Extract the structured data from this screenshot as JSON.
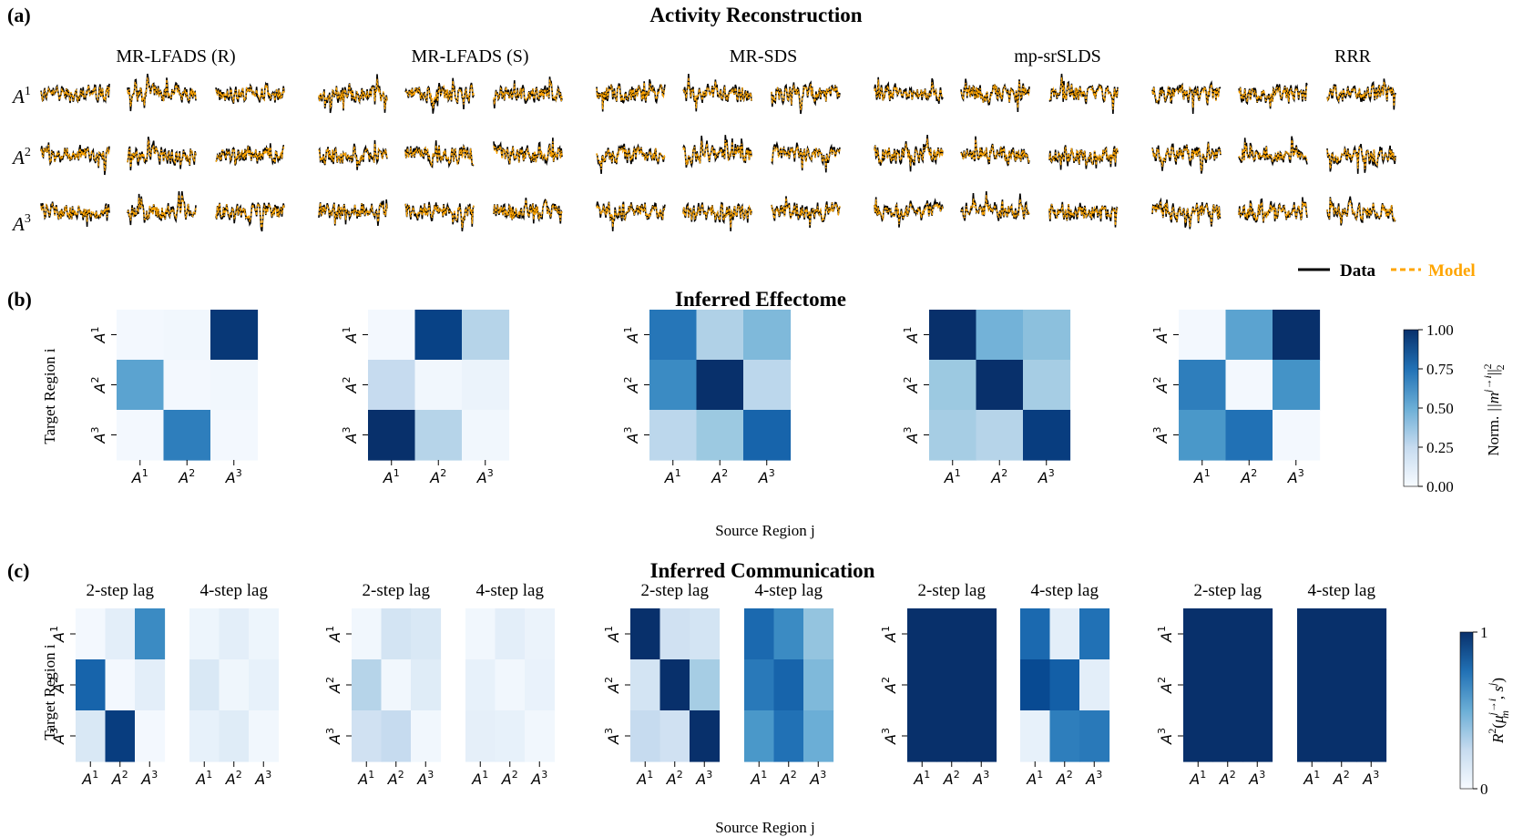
{
  "colors": {
    "data_line": "#000000",
    "model_line": "#ffa500",
    "cmap_low": "#f7fbff",
    "cmap_high": "#08306b"
  },
  "panel_a": {
    "label": "(a)",
    "title": "Activity Reconstruction",
    "methods": [
      "MR-LFADS (R)",
      "MR-LFADS (S)",
      "MR-SDS",
      "mp-srSLDS",
      "RRR"
    ],
    "row_labels": [
      {
        "base": "A",
        "sup": "1"
      },
      {
        "base": "A",
        "sup": "2"
      },
      {
        "base": "A",
        "sup": "3"
      }
    ],
    "legend": {
      "data": "Data",
      "model": "Model"
    }
  },
  "panel_b": {
    "label": "(b)",
    "title": "Inferred Effectome",
    "ylabel": "Target Region i",
    "xlabel": "Source Region j",
    "tick_base": "A",
    "tick_sups": [
      "1",
      "2",
      "3"
    ],
    "colorbar": {
      "label": "Norm. ||m^{j→i}||²₂",
      "label_prefix": "Norm. ",
      "label_math": "||m",
      "label_sup": "j→i",
      "label_tail": "||",
      "label_exp": "2",
      "label_sub": "2",
      "ticks": [
        "1.00",
        "0.75",
        "0.50",
        "0.25",
        "0.00"
      ]
    }
  },
  "panel_c": {
    "label": "(c)",
    "title": "Inferred Communication",
    "lag_labels": [
      "2-step lag",
      "4-step lag"
    ],
    "ylabel": "Target Region i",
    "xlabel": "Source Region j",
    "colorbar": {
      "label": "R²(μ_m^{j→i}, s^j)",
      "ticks": [
        "1",
        "0"
      ]
    }
  },
  "chart_data": [
    {
      "type": "heatmap",
      "title": "Inferred Effectome",
      "xlabel": "Source Region j",
      "ylabel": "Target Region i",
      "range": [
        0,
        1
      ],
      "matrices": [
        {
          "method": "MR-LFADS (R)",
          "values": [
            [
              0.02,
              0.03,
              0.97
            ],
            [
              0.55,
              0.02,
              0.03
            ],
            [
              0.02,
              0.7,
              0.02
            ]
          ]
        },
        {
          "method": "MR-LFADS (S)",
          "values": [
            [
              0.02,
              0.93,
              0.3
            ],
            [
              0.25,
              0.03,
              0.06
            ],
            [
              1.0,
              0.3,
              0.03
            ]
          ]
        },
        {
          "method": "MR-SDS",
          "values": [
            [
              0.73,
              0.32,
              0.45
            ],
            [
              0.65,
              1.0,
              0.28
            ],
            [
              0.28,
              0.38,
              0.8
            ]
          ]
        },
        {
          "method": "mp-srSLDS",
          "values": [
            [
              1.0,
              0.48,
              0.42
            ],
            [
              0.38,
              1.0,
              0.35
            ],
            [
              0.35,
              0.3,
              0.95
            ]
          ]
        },
        {
          "method": "RRR",
          "values": [
            [
              0.02,
              0.55,
              1.0
            ],
            [
              0.7,
              0.02,
              0.62
            ],
            [
              0.6,
              0.75,
              0.02
            ]
          ]
        }
      ]
    },
    {
      "type": "heatmap",
      "title": "Inferred Communication",
      "xlabel": "Source Region j",
      "ylabel": "Target Region i",
      "range": [
        0,
        1
      ],
      "matrices": [
        {
          "method": "MR-LFADS (R)",
          "lag": "2-step lag",
          "values": [
            [
              0.02,
              0.1,
              0.65
            ],
            [
              0.8,
              0.02,
              0.1
            ],
            [
              0.15,
              0.95,
              0.02
            ]
          ]
        },
        {
          "method": "MR-LFADS (R)",
          "lag": "4-step lag",
          "values": [
            [
              0.05,
              0.1,
              0.05
            ],
            [
              0.15,
              0.04,
              0.08
            ],
            [
              0.08,
              0.12,
              0.03
            ]
          ]
        },
        {
          "method": "MR-LFADS (S)",
          "lag": "2-step lag",
          "values": [
            [
              0.03,
              0.18,
              0.15
            ],
            [
              0.3,
              0.03,
              0.12
            ],
            [
              0.2,
              0.25,
              0.03
            ]
          ]
        },
        {
          "method": "MR-LFADS (S)",
          "lag": "4-step lag",
          "values": [
            [
              0.03,
              0.1,
              0.06
            ],
            [
              0.08,
              0.03,
              0.07
            ],
            [
              0.09,
              0.08,
              0.03
            ]
          ]
        },
        {
          "method": "MR-SDS",
          "lag": "2-step lag",
          "values": [
            [
              1.0,
              0.2,
              0.18
            ],
            [
              0.18,
              1.0,
              0.35
            ],
            [
              0.25,
              0.2,
              1.0
            ]
          ]
        },
        {
          "method": "MR-SDS",
          "lag": "4-step lag",
          "values": [
            [
              0.78,
              0.65,
              0.4
            ],
            [
              0.72,
              0.8,
              0.45
            ],
            [
              0.6,
              0.75,
              0.5
            ]
          ]
        },
        {
          "method": "mp-srSLDS",
          "lag": "2-step lag",
          "values": [
            [
              1.0,
              1.0,
              1.0
            ],
            [
              1.0,
              1.0,
              1.0
            ],
            [
              1.0,
              1.0,
              1.0
            ]
          ]
        },
        {
          "method": "mp-srSLDS",
          "lag": "4-step lag",
          "values": [
            [
              0.78,
              0.1,
              0.75
            ],
            [
              0.9,
              0.82,
              0.1
            ],
            [
              0.08,
              0.7,
              0.72
            ]
          ]
        },
        {
          "method": "RRR",
          "lag": "2-step lag",
          "values": [
            [
              1.0,
              1.0,
              1.0
            ],
            [
              1.0,
              1.0,
              1.0
            ],
            [
              1.0,
              1.0,
              1.0
            ]
          ]
        },
        {
          "method": "RRR",
          "lag": "4-step lag",
          "values": [
            [
              1.0,
              1.0,
              1.0
            ],
            [
              1.0,
              1.0,
              1.0
            ],
            [
              1.0,
              1.0,
              1.0
            ]
          ]
        }
      ]
    }
  ]
}
